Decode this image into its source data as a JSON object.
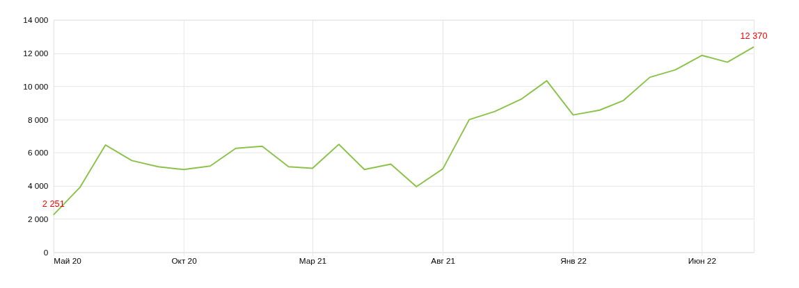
{
  "chart_data": {
    "type": "line",
    "x": [
      "2020-05",
      "2020-06",
      "2020-07",
      "2020-08",
      "2020-09",
      "2020-10",
      "2020-11",
      "2020-12",
      "2021-01",
      "2021-02",
      "2021-03",
      "2021-04",
      "2021-05",
      "2021-06",
      "2021-07",
      "2021-08",
      "2021-09",
      "2021-10",
      "2021-11",
      "2021-12",
      "2022-01",
      "2022-02",
      "2022-03",
      "2022-04",
      "2022-05",
      "2022-06",
      "2022-07",
      "2022-08"
    ],
    "series": [
      {
        "color": "#8bc34a",
        "values": [
          2251,
          3900,
          6460,
          5520,
          5150,
          4980,
          5190,
          6260,
          6380,
          5150,
          5060,
          6500,
          4980,
          5310,
          3950,
          5020,
          7990,
          8480,
          9220,
          10330,
          8270,
          8560,
          9140,
          10540,
          10990,
          11860,
          11450,
          12370
        ],
        "value_labels": [
          "2 251",
          null,
          null,
          null,
          null,
          null,
          null,
          null,
          null,
          null,
          null,
          null,
          null,
          null,
          null,
          null,
          null,
          null,
          null,
          null,
          null,
          null,
          null,
          null,
          null,
          null,
          null,
          "12 370"
        ]
      }
    ],
    "xlim": [
      "2020-05",
      "2022-08"
    ],
    "xticks": [
      {
        "value": "2020-05",
        "label": "Май 20"
      },
      {
        "value": "2020-10",
        "label": "Окт 20"
      },
      {
        "value": "2021-03",
        "label": "Мар 21"
      },
      {
        "value": "2021-08",
        "label": "Авг 21"
      },
      {
        "value": "2022-01",
        "label": "Янв 22"
      },
      {
        "value": "2022-06",
        "label": "Июн 22"
      }
    ],
    "ylim": [
      0,
      14000
    ],
    "yticks": [
      {
        "value": 0,
        "label": "0"
      },
      {
        "value": 2000,
        "label": "2 000"
      },
      {
        "value": 4000,
        "label": "4 000"
      },
      {
        "value": 6000,
        "label": "6 000"
      },
      {
        "value": 8000,
        "label": "8 000"
      },
      {
        "value": 10000,
        "label": "10 000"
      },
      {
        "value": 12000,
        "label": "12 000"
      },
      {
        "value": 14000,
        "label": "14 000"
      }
    ],
    "grid": true,
    "marker": "none",
    "line_style": "solid",
    "legend": false
  }
}
